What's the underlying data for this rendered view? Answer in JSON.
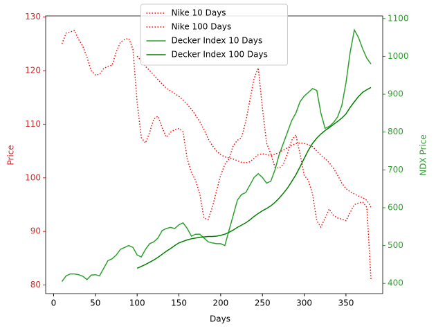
{
  "chart_data": {
    "type": "line",
    "xlabel": "Days",
    "ylabel": "Price",
    "y2label": "NDX Price",
    "y_color": "#d62728",
    "y2_color": "#2ca02c",
    "legend": "upper center",
    "x": [
      10,
      15,
      20,
      25,
      30,
      35,
      40,
      45,
      50,
      55,
      60,
      65,
      70,
      75,
      80,
      85,
      90,
      95,
      100,
      105,
      110,
      115,
      120,
      125,
      130,
      135,
      140,
      145,
      150,
      155,
      160,
      165,
      170,
      175,
      180,
      185,
      190,
      195,
      200,
      205,
      210,
      215,
      220,
      225,
      230,
      235,
      240,
      245,
      250,
      255,
      260,
      265,
      270,
      275,
      280,
      285,
      290,
      295,
      300,
      305,
      310,
      315,
      320,
      325,
      330,
      335,
      340,
      345,
      350,
      355,
      360,
      365,
      370,
      375,
      380
    ],
    "xlim": [
      -9.5,
      394
    ],
    "xticks": [
      0,
      50,
      100,
      150,
      200,
      250,
      300,
      350
    ],
    "ylim": [
      78.4,
      130.2
    ],
    "yticks": [
      80,
      90,
      100,
      110,
      120,
      130
    ],
    "y2lim": [
      373,
      1107
    ],
    "y2ticks": [
      400,
      500,
      600,
      700,
      800,
      900,
      1000,
      1100
    ],
    "series": [
      {
        "name": "Nike 10 Days",
        "color": "#ff0000",
        "dash": "dotted",
        "values": [
          125,
          127,
          127.2,
          127.5,
          125.8,
          124.5,
          122.5,
          120,
          119.2,
          119.3,
          120.4,
          120.8,
          121,
          123.5,
          125.3,
          125.8,
          126,
          124,
          114,
          107.5,
          106.5,
          108.5,
          111,
          111.5,
          109.3,
          107.6,
          108.5,
          109,
          109.2,
          108.6,
          103.5,
          101,
          99.5,
          97,
          92.5,
          92.2,
          94.5,
          97.5,
          100.5,
          102.5,
          103.5,
          106,
          107,
          107.5,
          110.5,
          114.5,
          118.5,
          120.5,
          113,
          106.5,
          104.5,
          102,
          101.8,
          102.5,
          104.5,
          107,
          108,
          104.5,
          100.5,
          99.5,
          97,
          92,
          90.8,
          92.5,
          94.2,
          93,
          92.5,
          92.3,
          92,
          93.5,
          95,
          95.3,
          95.5,
          94.5,
          81
        ]
      },
      {
        "name": "Nike 100 Days",
        "color": "#ff0000",
        "dash": "dotted",
        "values": [
          null,
          null,
          null,
          null,
          null,
          null,
          null,
          null,
          null,
          null,
          null,
          null,
          null,
          null,
          null,
          null,
          null,
          null,
          122.7,
          121.8,
          120.8,
          120,
          119.2,
          118.3,
          117.5,
          116.7,
          116.2,
          115.7,
          115.2,
          114.5,
          113.7,
          112.8,
          111.7,
          110.5,
          109,
          107.3,
          106,
          105,
          104.3,
          103.9,
          103.7,
          103.5,
          103.2,
          102.9,
          102.8,
          103,
          103.6,
          104.3,
          104.5,
          104.3,
          104.2,
          104.4,
          104.7,
          105.2,
          105.6,
          106,
          106.4,
          106.5,
          106.4,
          106.2,
          105.8,
          105,
          104.2,
          103.6,
          102.8,
          101.8,
          100.5,
          99,
          98,
          97.4,
          97,
          96.6,
          96.3,
          95.8,
          94.5
        ]
      },
      {
        "name": "Decker Index 10 Days",
        "color": "#2ca02c",
        "dash": "solid",
        "axis": "y2",
        "values": [
          405,
          420,
          425,
          425,
          423,
          419,
          410,
          422,
          423,
          420,
          440,
          460,
          465,
          475,
          490,
          495,
          500,
          495,
          475,
          470,
          490,
          505,
          510,
          520,
          540,
          545,
          548,
          545,
          555,
          560,
          545,
          525,
          530,
          530,
          520,
          510,
          507,
          505,
          505,
          500,
          540,
          580,
          620,
          635,
          640,
          660,
          680,
          690,
          680,
          665,
          670,
          700,
          740,
          770,
          800,
          830,
          850,
          880,
          895,
          905,
          915,
          910,
          850,
          810,
          815,
          825,
          840,
          870,
          930,
          1010,
          1070,
          1050,
          1020,
          995,
          980
        ]
      },
      {
        "name": "Decker Index 100 Days",
        "color": "#008000",
        "dash": "solid",
        "axis": "y2",
        "values": [
          null,
          null,
          null,
          null,
          null,
          null,
          null,
          null,
          null,
          null,
          null,
          null,
          null,
          null,
          null,
          null,
          null,
          null,
          440,
          445,
          450,
          456,
          462,
          469,
          477,
          485,
          492,
          500,
          507,
          511,
          515,
          518,
          520,
          522,
          523,
          524,
          524,
          525,
          527,
          530,
          535,
          541,
          548,
          554,
          560,
          568,
          577,
          585,
          592,
          598,
          605,
          614,
          625,
          638,
          652,
          669,
          687,
          708,
          730,
          752,
          770,
          784,
          795,
          804,
          812,
          820,
          828,
          837,
          848,
          865,
          880,
          894,
          905,
          912,
          918
        ]
      }
    ]
  }
}
